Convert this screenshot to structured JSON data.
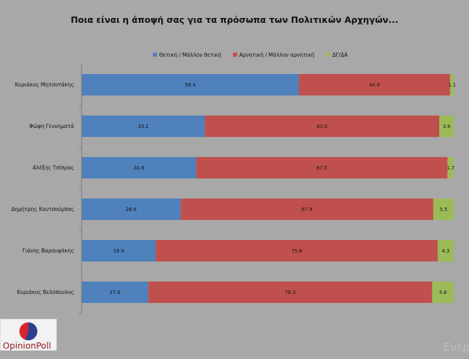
{
  "chart_data": {
    "type": "bar",
    "orientation": "horizontal",
    "stacked": true,
    "title": "Ποια είναι η άποψή σας για τα πρόσωπα των Πολιτικών Αρχηγών...",
    "legend_position": "top-center",
    "xlim": [
      0,
      100
    ],
    "grid": false,
    "categories": [
      "Κυριάκος Μητσοτάκης",
      "Φώφη Γεννηματά",
      "Αλέξης Τσίπρας",
      "Δημήτρης Κουτσούμπας",
      "Γιάνης Βαρουφάκης",
      "Κυριάκος Βελόπουλος"
    ],
    "series": [
      {
        "name": "Θετική / Μάλλον θετική",
        "color": "#4f81bd",
        "values": [
          58.4,
          33.1,
          30.8,
          26.6,
          19.9,
          17.9
        ]
      },
      {
        "name": "Αρνητική / Μάλλον αρνητική",
        "color": "#c0504d",
        "values": [
          40.6,
          63.0,
          67.5,
          67.9,
          75.8,
          76.3
        ]
      },
      {
        "name": "ΔΓ/ΔΑ",
        "color": "#9bbb59",
        "values": [
          1.1,
          3.9,
          1.7,
          5.5,
          4.3,
          5.8
        ]
      }
    ]
  },
  "logo": {
    "text": "OpinionPoll"
  },
  "watermark": "Ενερ"
}
